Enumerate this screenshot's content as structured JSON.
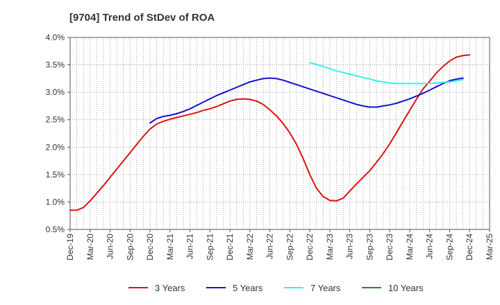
{
  "chart_data": {
    "type": "line",
    "title": "[9704]  Trend of StDev of ROA",
    "xlabel": "",
    "ylabel": "",
    "x_ticks": [
      "Dec-19",
      "Mar-20",
      "Jun-20",
      "Sep-20",
      "Dec-20",
      "Mar-21",
      "Jun-21",
      "Sep-21",
      "Dec-21",
      "Mar-22",
      "Jun-22",
      "Sep-22",
      "Dec-22",
      "Mar-23",
      "Jun-23",
      "Sep-23",
      "Dec-23",
      "Mar-24",
      "Jun-24",
      "Sep-24",
      "Dec-24",
      "Mar-25"
    ],
    "y_ticks": [
      "0.5%",
      "1.0%",
      "1.5%",
      "2.0%",
      "2.5%",
      "3.0%",
      "3.5%",
      "4.0%"
    ],
    "ylim": [
      0.5,
      4.0
    ],
    "grid": true,
    "legend_position": "bottom",
    "series": [
      {
        "name": "3 Years",
        "color": "#dd1111",
        "points": [
          [
            "Dec-19",
            0.85
          ],
          [
            "Jan-20",
            0.85
          ],
          [
            "Feb-20",
            0.9
          ],
          [
            "Mar-20",
            1.02
          ],
          [
            "Apr-20",
            1.16
          ],
          [
            "May-20",
            1.3
          ],
          [
            "Jun-20",
            1.45
          ],
          [
            "Jul-20",
            1.6
          ],
          [
            "Aug-20",
            1.75
          ],
          [
            "Sep-20",
            1.9
          ],
          [
            "Oct-20",
            2.05
          ],
          [
            "Nov-20",
            2.2
          ],
          [
            "Dec-20",
            2.33
          ],
          [
            "Jan-21",
            2.42
          ],
          [
            "Feb-21",
            2.47
          ],
          [
            "Mar-21",
            2.51
          ],
          [
            "Apr-21",
            2.54
          ],
          [
            "May-21",
            2.57
          ],
          [
            "Jun-21",
            2.6
          ],
          [
            "Jul-21",
            2.63
          ],
          [
            "Aug-21",
            2.67
          ],
          [
            "Sep-21",
            2.7
          ],
          [
            "Oct-21",
            2.74
          ],
          [
            "Nov-21",
            2.79
          ],
          [
            "Dec-21",
            2.84
          ],
          [
            "Jan-22",
            2.87
          ],
          [
            "Feb-22",
            2.88
          ],
          [
            "Mar-22",
            2.87
          ],
          [
            "Apr-22",
            2.84
          ],
          [
            "May-22",
            2.78
          ],
          [
            "Jun-22",
            2.68
          ],
          [
            "Jul-22",
            2.57
          ],
          [
            "Aug-22",
            2.43
          ],
          [
            "Sep-22",
            2.26
          ],
          [
            "Oct-22",
            2.05
          ],
          [
            "Nov-22",
            1.79
          ],
          [
            "Dec-22",
            1.5
          ],
          [
            "Jan-23",
            1.25
          ],
          [
            "Feb-23",
            1.1
          ],
          [
            "Mar-23",
            1.03
          ],
          [
            "Apr-23",
            1.02
          ],
          [
            "May-23",
            1.07
          ],
          [
            "Jun-23",
            1.2
          ],
          [
            "Jul-23",
            1.33
          ],
          [
            "Aug-23",
            1.45
          ],
          [
            "Sep-23",
            1.57
          ],
          [
            "Oct-23",
            1.72
          ],
          [
            "Nov-23",
            1.88
          ],
          [
            "Dec-23",
            2.06
          ],
          [
            "Jan-24",
            2.26
          ],
          [
            "Feb-24",
            2.47
          ],
          [
            "Mar-24",
            2.67
          ],
          [
            "Apr-24",
            2.87
          ],
          [
            "May-24",
            3.06
          ],
          [
            "Jun-24",
            3.2
          ],
          [
            "Jul-24",
            3.35
          ],
          [
            "Aug-24",
            3.47
          ],
          [
            "Sep-24",
            3.57
          ],
          [
            "Oct-24",
            3.64
          ],
          [
            "Nov-24",
            3.67
          ],
          [
            "Dec-24",
            3.68
          ]
        ]
      },
      {
        "name": "5 Years",
        "color": "#1111cc",
        "points": [
          [
            "Dec-20",
            2.44
          ],
          [
            "Jan-21",
            2.52
          ],
          [
            "Feb-21",
            2.56
          ],
          [
            "Mar-21",
            2.58
          ],
          [
            "Apr-21",
            2.61
          ],
          [
            "May-21",
            2.65
          ],
          [
            "Jun-21",
            2.7
          ],
          [
            "Jul-21",
            2.76
          ],
          [
            "Aug-21",
            2.82
          ],
          [
            "Sep-21",
            2.88
          ],
          [
            "Oct-21",
            2.94
          ],
          [
            "Nov-21",
            2.99
          ],
          [
            "Dec-21",
            3.04
          ],
          [
            "Jan-22",
            3.09
          ],
          [
            "Feb-22",
            3.14
          ],
          [
            "Mar-22",
            3.19
          ],
          [
            "Apr-22",
            3.22
          ],
          [
            "May-22",
            3.25
          ],
          [
            "Jun-22",
            3.26
          ],
          [
            "Jul-22",
            3.25
          ],
          [
            "Aug-22",
            3.22
          ],
          [
            "Sep-22",
            3.18
          ],
          [
            "Oct-22",
            3.14
          ],
          [
            "Nov-22",
            3.1
          ],
          [
            "Dec-22",
            3.06
          ],
          [
            "Jan-23",
            3.02
          ],
          [
            "Feb-23",
            2.98
          ],
          [
            "Mar-23",
            2.94
          ],
          [
            "Apr-23",
            2.9
          ],
          [
            "May-23",
            2.86
          ],
          [
            "Jun-23",
            2.82
          ],
          [
            "Jul-23",
            2.78
          ],
          [
            "Aug-23",
            2.75
          ],
          [
            "Sep-23",
            2.73
          ],
          [
            "Oct-23",
            2.73
          ],
          [
            "Nov-23",
            2.75
          ],
          [
            "Dec-23",
            2.77
          ],
          [
            "Jan-24",
            2.8
          ],
          [
            "Feb-24",
            2.84
          ],
          [
            "Mar-24",
            2.88
          ],
          [
            "Apr-24",
            2.93
          ],
          [
            "May-24",
            2.98
          ],
          [
            "Jun-24",
            3.04
          ],
          [
            "Jul-24",
            3.1
          ],
          [
            "Aug-24",
            3.16
          ],
          [
            "Sep-24",
            3.21
          ],
          [
            "Oct-24",
            3.24
          ],
          [
            "Nov-24",
            3.26
          ]
        ]
      },
      {
        "name": "7 Years",
        "color": "#33eeee",
        "points": [
          [
            "Dec-22",
            3.54
          ],
          [
            "Jan-23",
            3.51
          ],
          [
            "Feb-23",
            3.47
          ],
          [
            "Mar-23",
            3.43
          ],
          [
            "Apr-23",
            3.39
          ],
          [
            "May-23",
            3.36
          ],
          [
            "Jun-23",
            3.33
          ],
          [
            "Jul-23",
            3.3
          ],
          [
            "Aug-23",
            3.27
          ],
          [
            "Sep-23",
            3.24
          ],
          [
            "Oct-23",
            3.21
          ],
          [
            "Nov-23",
            3.19
          ],
          [
            "Dec-23",
            3.17
          ],
          [
            "Jan-24",
            3.16
          ],
          [
            "Feb-24",
            3.16
          ],
          [
            "Mar-24",
            3.16
          ],
          [
            "Apr-24",
            3.16
          ],
          [
            "May-24",
            3.16
          ],
          [
            "Jun-24",
            3.16
          ],
          [
            "Jul-24",
            3.17
          ],
          [
            "Aug-24",
            3.18
          ],
          [
            "Sep-24",
            3.19
          ],
          [
            "Oct-24",
            3.21
          ],
          [
            "Nov-24",
            3.23
          ]
        ]
      },
      {
        "name": "10 Years",
        "color": "#228822",
        "points": []
      }
    ]
  }
}
